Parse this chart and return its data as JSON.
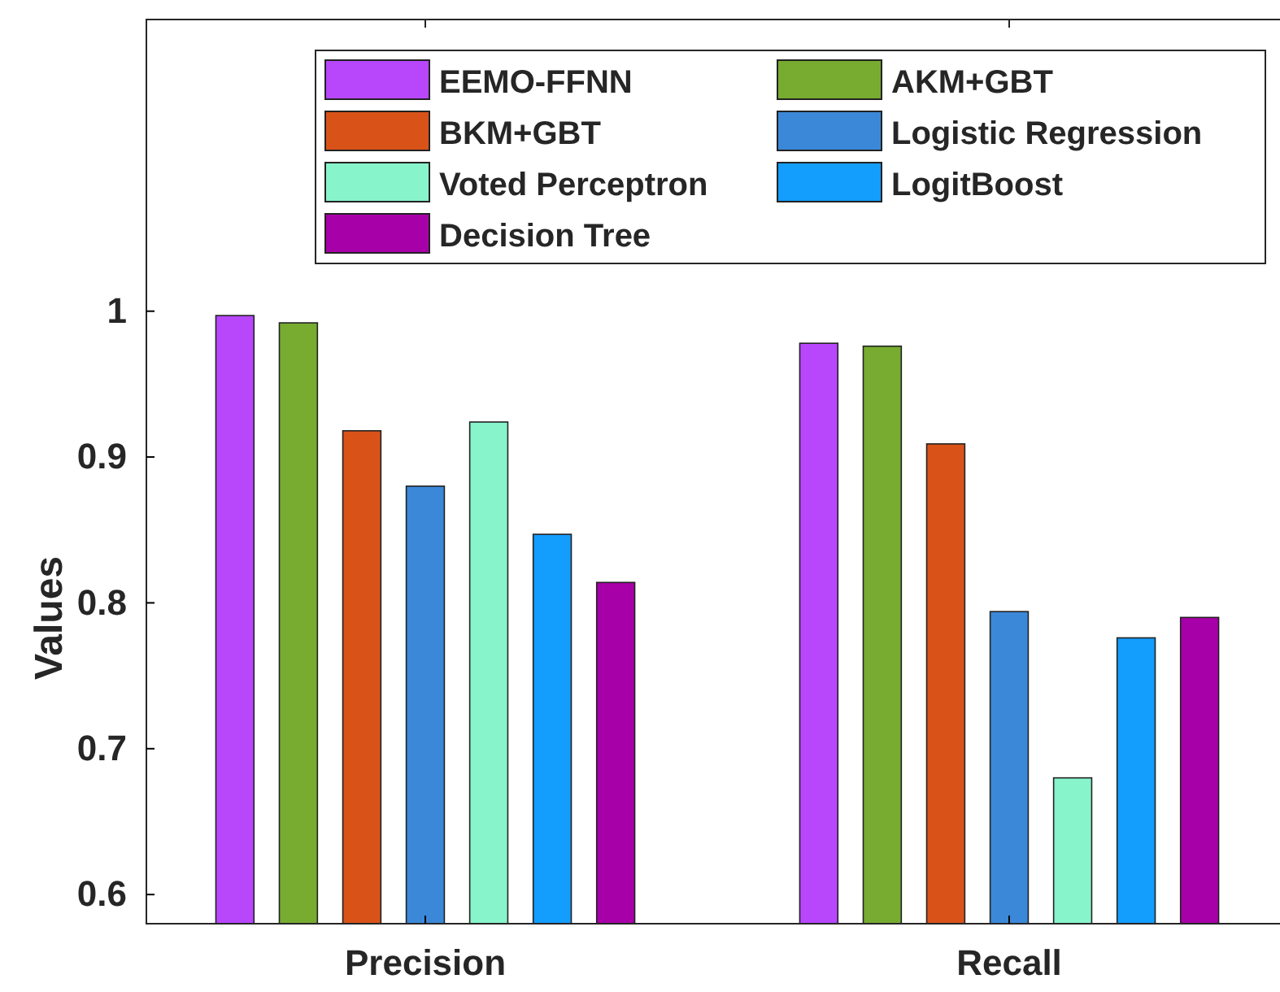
{
  "chart_data": {
    "type": "bar",
    "ylabel": "Values",
    "categories": [
      "Precision",
      "Recall"
    ],
    "series": [
      {
        "name": "EEMO-FFNN",
        "color": "#b847fc",
        "values": [
          0.997,
          0.978
        ]
      },
      {
        "name": "AKM+GBT",
        "color": "#77ac30",
        "values": [
          0.992,
          0.976
        ]
      },
      {
        "name": "BKM+GBT",
        "color": "#d95319",
        "values": [
          0.918,
          0.909
        ]
      },
      {
        "name": "Logistic Regression",
        "color": "#3b88d8",
        "values": [
          0.88,
          0.794
        ]
      },
      {
        "name": "Voted Perceptron",
        "color": "#88f4cc",
        "values": [
          0.924,
          0.68
        ]
      },
      {
        "name": "LogitBoost",
        "color": "#139dfc",
        "values": [
          0.847,
          0.776
        ]
      },
      {
        "name": "Decision Tree",
        "color": "#a800a8",
        "values": [
          0.814,
          0.79
        ]
      }
    ],
    "ylim": [
      0.58,
      1.2
    ],
    "yticks": [
      0.6,
      0.7,
      0.8,
      0.9,
      1
    ],
    "grid": false,
    "legend": "top right"
  }
}
